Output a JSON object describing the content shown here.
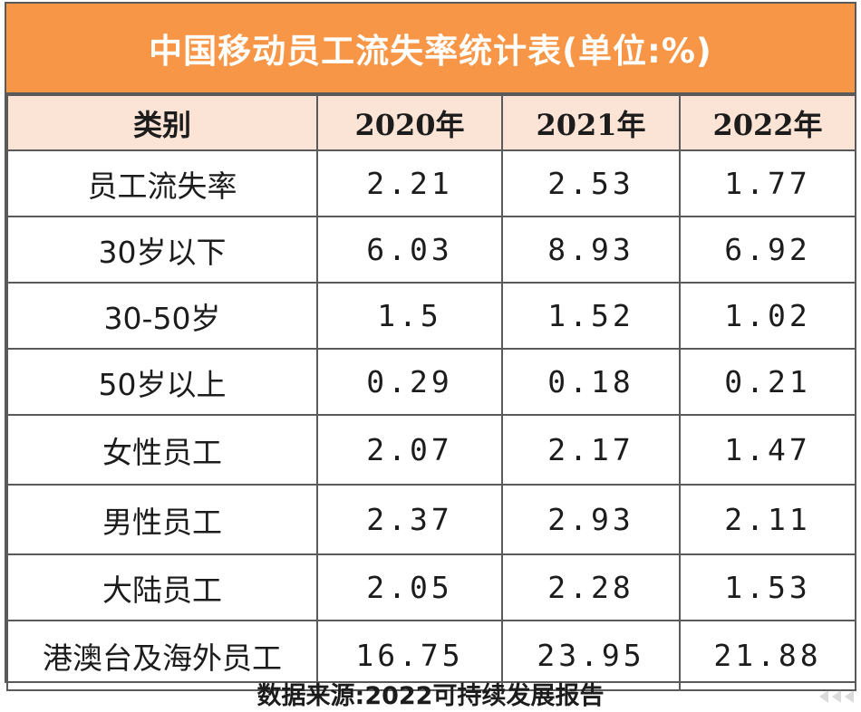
{
  "title": "中国移动员工流失率统计表(单位:%)",
  "colors": {
    "title_bg": "#f79646",
    "header_bg": "#fbe3d5",
    "border": "#5a5a5a"
  },
  "table": {
    "headers": [
      "类别",
      "2020年",
      "2021年",
      "2022年"
    ],
    "rows": [
      {
        "label": "员工流失率",
        "values": [
          "2.21",
          "2.53",
          "1.77"
        ]
      },
      {
        "label": "30岁以下",
        "values": [
          "6.03",
          "8.93",
          "6.92"
        ]
      },
      {
        "label": "30-50岁",
        "values": [
          "1.5",
          "1.52",
          "1.02"
        ]
      },
      {
        "label": "50岁以上",
        "values": [
          "0.29",
          "0.18",
          "0.21"
        ]
      },
      {
        "label": "女性员工",
        "values": [
          "2.07",
          "2.17",
          "1.47"
        ]
      },
      {
        "label": "男性员工",
        "values": [
          "2.37",
          "2.93",
          "2.11"
        ]
      },
      {
        "label": "大陆员工",
        "values": [
          "2.05",
          "2.28",
          "1.53"
        ]
      },
      {
        "label": "港澳台及海外员工",
        "values": [
          "16.75",
          "23.95",
          "21.88"
        ]
      }
    ]
  },
  "source": "数据来源:2022可持续发展报告",
  "chart_data": {
    "type": "table",
    "title": "中国移动员工流失率统计表(单位:%)",
    "categories": [
      "2020年",
      "2021年",
      "2022年"
    ],
    "series": [
      {
        "name": "员工流失率",
        "values": [
          2.21,
          2.53,
          1.77
        ]
      },
      {
        "name": "30岁以下",
        "values": [
          6.03,
          8.93,
          6.92
        ]
      },
      {
        "name": "30-50岁",
        "values": [
          1.5,
          1.52,
          1.02
        ]
      },
      {
        "name": "50岁以上",
        "values": [
          0.29,
          0.18,
          0.21
        ]
      },
      {
        "name": "女性员工",
        "values": [
          2.07,
          2.17,
          1.47
        ]
      },
      {
        "name": "男性员工",
        "values": [
          2.37,
          2.93,
          2.11
        ]
      },
      {
        "name": "大陆员工",
        "values": [
          2.05,
          2.28,
          1.53
        ]
      },
      {
        "name": "港澳台及海外员工",
        "values": [
          16.75,
          23.95,
          21.88
        ]
      }
    ]
  }
}
